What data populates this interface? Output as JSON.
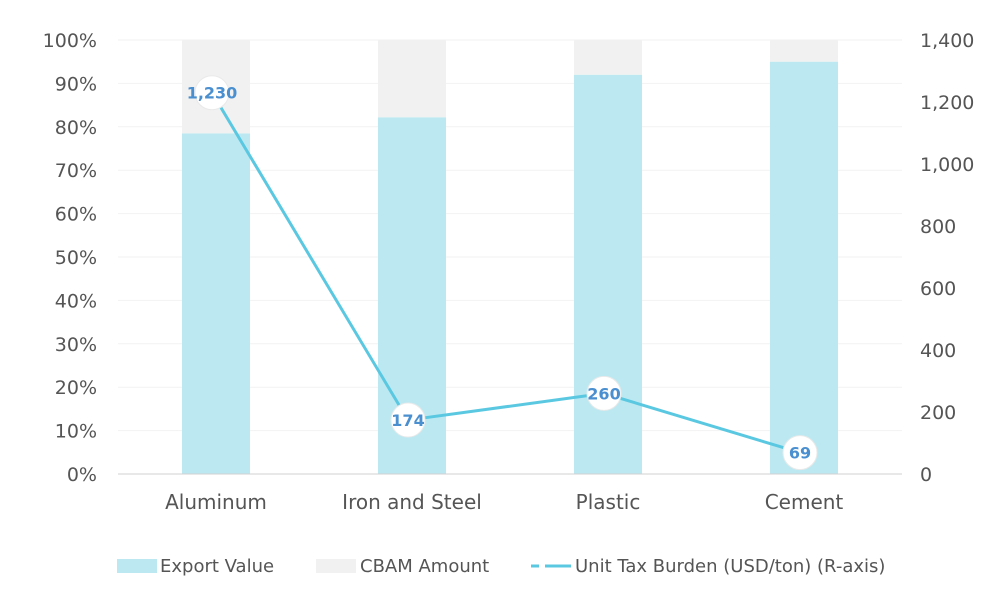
{
  "chart_data": {
    "type": "bar",
    "categories": [
      "Aluminum",
      "Iron and Steel",
      "Plastic",
      "Cement"
    ],
    "series": [
      {
        "name": "Export Value",
        "kind": "stacked-bar",
        "axis": "left",
        "values": [
          78.5,
          82.2,
          92.0,
          95.0
        ],
        "color": "#bce9f1"
      },
      {
        "name": "CBAM Amount",
        "kind": "stacked-bar",
        "axis": "left",
        "values": [
          21.5,
          17.8,
          8.0,
          5.0
        ],
        "color": "#f1f1f1"
      },
      {
        "name": "Unit Tax Burden (USD/ton) (R-axis)",
        "kind": "line",
        "axis": "right",
        "values": [
          1230,
          174,
          260,
          69
        ],
        "labels": [
          "1,230",
          "174",
          "260",
          "69"
        ],
        "color": "#5bc8e2"
      }
    ],
    "y_left": {
      "ticks": [
        "0%",
        "10%",
        "20%",
        "30%",
        "40%",
        "50%",
        "60%",
        "70%",
        "80%",
        "90%",
        "100%"
      ],
      "range": [
        0,
        100
      ]
    },
    "y_right": {
      "ticks": [
        "0",
        "200",
        "400",
        "600",
        "800",
        "1,000",
        "1,200",
        "1,400"
      ],
      "range": [
        0,
        1400
      ]
    },
    "legend": {
      "position": "bottom"
    },
    "grid": true
  }
}
